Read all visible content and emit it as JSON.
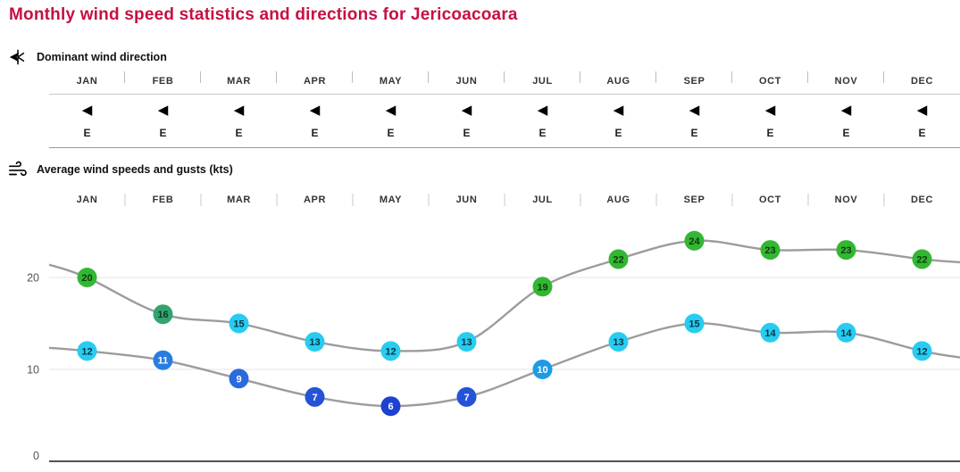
{
  "page_title": "Monthly wind speed statistics and directions for Jericoacoara",
  "colors": {
    "title": "#c61043",
    "line": "#9c9c9c",
    "grid": "#e4e4e4",
    "axis": "#3a3a3a",
    "tick": "#c9c9c9",
    "month_label": "#333333",
    "axis_label": "#555555"
  },
  "direction_section": {
    "label": "Dominant wind direction",
    "icon": "wind-direction-icon",
    "arrow_glyph": "◀",
    "months": [
      "JAN",
      "FEB",
      "MAR",
      "APR",
      "MAY",
      "JUN",
      "JUL",
      "AUG",
      "SEP",
      "OCT",
      "NOV",
      "DEC"
    ],
    "directions": [
      "E",
      "E",
      "E",
      "E",
      "E",
      "E",
      "E",
      "E",
      "E",
      "E",
      "E",
      "E"
    ]
  },
  "speeds_section": {
    "label": "Average wind speeds and gusts (kts)",
    "icon": "wind-gust-icon"
  },
  "chart_data": {
    "type": "line",
    "title": "Average wind speeds and gusts (kts)",
    "unit": "kts",
    "categories": [
      "JAN",
      "FEB",
      "MAR",
      "APR",
      "MAY",
      "JUN",
      "JUL",
      "AUG",
      "SEP",
      "OCT",
      "NOV",
      "DEC"
    ],
    "yticks": [
      0,
      10,
      20
    ],
    "ylim": [
      0,
      27
    ],
    "grid": "horizontal",
    "legend_position": "none",
    "series": [
      {
        "name": "gusts",
        "values": [
          20,
          16,
          15,
          13,
          12,
          13,
          19,
          22,
          24,
          23,
          23,
          22
        ],
        "marker_colors": [
          "#33b733",
          "#33a370",
          "#27ccf0",
          "#27ccf0",
          "#27ccf0",
          "#27ccf0",
          "#33b733",
          "#33b733",
          "#33b733",
          "#33b733",
          "#33b733",
          "#33b733"
        ],
        "label_colors": [
          "#0e3a0e",
          "#0b3a2a",
          "#0b3544",
          "#0b3544",
          "#0b3544",
          "#0b3544",
          "#0e3a0e",
          "#0e3a0e",
          "#0e3a0e",
          "#0e3a0e",
          "#0e3a0e",
          "#0e3a0e"
        ]
      },
      {
        "name": "wind speed",
        "values": [
          12,
          11,
          9,
          7,
          6,
          7,
          10,
          13,
          15,
          14,
          14,
          12
        ],
        "marker_colors": [
          "#27ccf0",
          "#2a7de0",
          "#2a6ade",
          "#2453d8",
          "#1d41d0",
          "#2453d8",
          "#1e9ae6",
          "#27ccf0",
          "#27ccf0",
          "#27ccf0",
          "#27ccf0",
          "#27ccf0"
        ],
        "label_colors": [
          "#0b3544",
          "#ffffff",
          "#ffffff",
          "#ffffff",
          "#ffffff",
          "#ffffff",
          "#ffffff",
          "#0b3544",
          "#0b3544",
          "#0b3544",
          "#0b3544",
          "#0b3544"
        ]
      }
    ]
  }
}
